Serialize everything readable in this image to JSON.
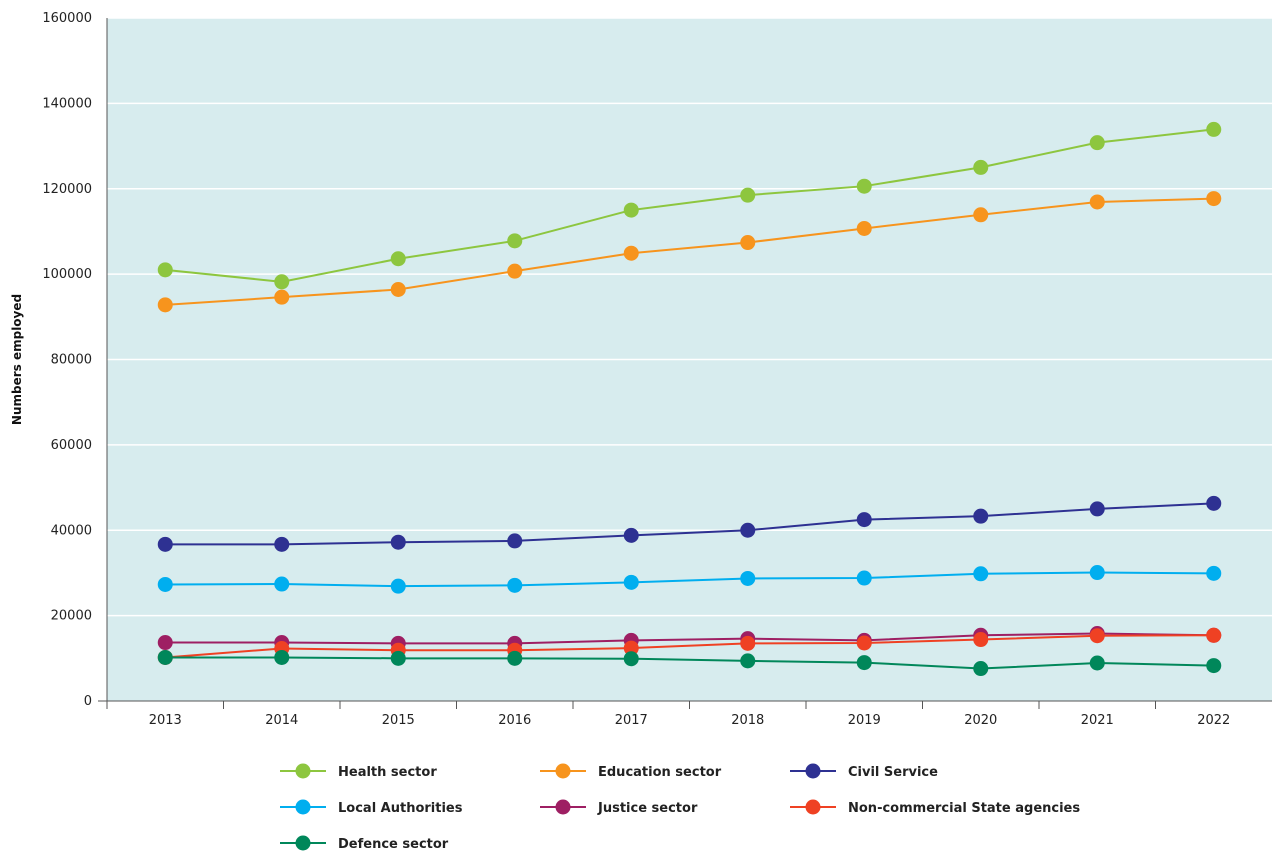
{
  "chart_data": {
    "type": "line",
    "title": "",
    "xlabel": "",
    "ylabel": "Numbers employed",
    "x": [
      "2013",
      "2014",
      "2015",
      "2016",
      "2017",
      "2018",
      "2019",
      "2020",
      "2021",
      "2022"
    ],
    "ylim": [
      0,
      160000
    ],
    "yticks": [
      0,
      20000,
      40000,
      60000,
      80000,
      100000,
      120000,
      140000,
      160000
    ],
    "ytick_labels": [
      "0",
      "20000",
      "40000",
      "60000",
      "80000",
      "100000",
      "120000",
      "140000",
      "160000"
    ],
    "grid": "horizontal",
    "plot_background": "#d7ecee",
    "legend_position": "bottom",
    "series": [
      {
        "name": "Health sector",
        "color": "#8dc63f",
        "values": [
          101000,
          98200,
          103600,
          107800,
          115000,
          118500,
          120600,
          125000,
          130800,
          133900
        ]
      },
      {
        "name": "Education sector",
        "color": "#f7941d",
        "values": [
          92800,
          94600,
          96400,
          100700,
          104900,
          107400,
          110700,
          113900,
          116900,
          117700
        ]
      },
      {
        "name": "Civil Service",
        "color": "#2e3192",
        "values": [
          36700,
          36700,
          37200,
          37500,
          38800,
          40000,
          42500,
          43300,
          45000,
          46300
        ]
      },
      {
        "name": "Local Authorities",
        "color": "#00aeef",
        "values": [
          27300,
          27400,
          26900,
          27100,
          27800,
          28700,
          28800,
          29800,
          30100,
          29900
        ]
      },
      {
        "name": "Justice sector",
        "color": "#9e1f63",
        "values": [
          13700,
          13700,
          13500,
          13500,
          14200,
          14600,
          14200,
          15400,
          15800,
          15400
        ]
      },
      {
        "name": "Non-commercial State agencies",
        "color": "#ef4123",
        "values": [
          10200,
          12300,
          11900,
          11900,
          12400,
          13500,
          13600,
          14400,
          15300,
          15400
        ]
      },
      {
        "name": "Defence sector",
        "color": "#00875a",
        "values": [
          10200,
          10200,
          10000,
          10000,
          9900,
          9400,
          9000,
          7600,
          8900,
          8300
        ]
      }
    ]
  }
}
